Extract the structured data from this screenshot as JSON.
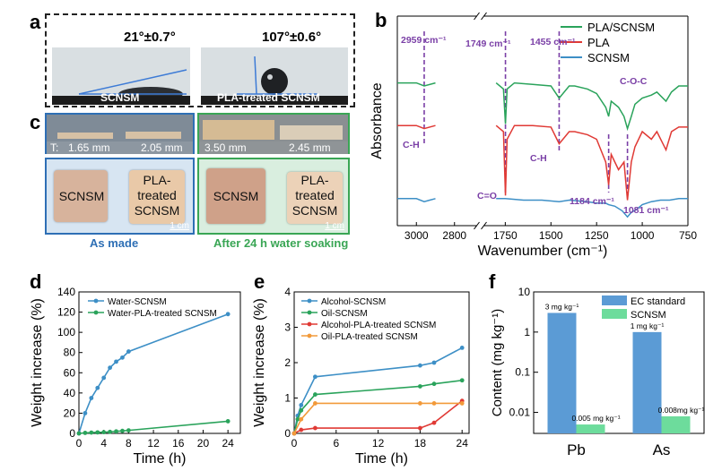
{
  "panels": {
    "a": {
      "label": "a",
      "left": {
        "angle": "21°±0.7°",
        "caption": "SCNSM"
      },
      "right": {
        "angle": "107°±0.6°",
        "caption": "PLA-treated SCNSM"
      }
    },
    "c": {
      "label": "c",
      "thickness": {
        "prefix": "T:",
        "values": [
          "1.65 mm",
          "2.05 mm",
          "3.50 mm",
          "2.45 mm"
        ]
      },
      "tiles": [
        "SCNSM",
        "PLA-treated SCNSM",
        "SCNSM",
        "PLA-treated SCNSM"
      ],
      "scalebar": "1 cm",
      "captions": {
        "left": "As made",
        "right": "After 24 h water  soaking"
      },
      "colors": {
        "left": "#2e6fb5",
        "right": "#3aa655"
      }
    },
    "b": {
      "label": "b"
    },
    "d": {
      "label": "d"
    },
    "e": {
      "label": "e"
    },
    "f": {
      "label": "f"
    }
  },
  "chart_data": [
    {
      "id": "b",
      "type": "line",
      "xlabel": "Wavenumber (cm⁻¹)",
      "ylabel": "Absorbance",
      "xticks": [
        "3000",
        "2800",
        "1750",
        "1500",
        "1250",
        "1000",
        "750"
      ],
      "legend": [
        "PLA/SCNSM",
        "PLA",
        "SCNSM"
      ],
      "colors": [
        "#2aa35b",
        "#e03a35",
        "#3d8fc6"
      ],
      "annotations": [
        "2959 cm⁻¹",
        "1749 cm⁻¹",
        "1455 cm⁻¹",
        "C-O-C",
        "C-H",
        "C-H",
        "C=O",
        "1184 cm⁻¹",
        "1081 cm⁻¹"
      ],
      "series": [
        {
          "name": "PLA/SCNSM",
          "points": [
            [
              3100,
              0.82
            ],
            [
              3000,
              0.82
            ],
            [
              2959,
              0.8
            ],
            [
              2900,
              0.82
            ],
            [
              1800,
              0.82
            ],
            [
              1760,
              0.78
            ],
            [
              1749,
              0.55
            ],
            [
              1740,
              0.78
            ],
            [
              1700,
              0.82
            ],
            [
              1600,
              0.81
            ],
            [
              1500,
              0.8
            ],
            [
              1455,
              0.72
            ],
            [
              1400,
              0.8
            ],
            [
              1370,
              0.8
            ],
            [
              1300,
              0.78
            ],
            [
              1250,
              0.75
            ],
            [
              1200,
              0.66
            ],
            [
              1184,
              0.6
            ],
            [
              1170,
              0.7
            ],
            [
              1130,
              0.66
            ],
            [
              1100,
              0.6
            ],
            [
              1081,
              0.52
            ],
            [
              1060,
              0.6
            ],
            [
              1040,
              0.68
            ],
            [
              1000,
              0.72
            ],
            [
              950,
              0.74
            ],
            [
              920,
              0.76
            ],
            [
              870,
              0.7
            ],
            [
              840,
              0.76
            ],
            [
              800,
              0.8
            ],
            [
              750,
              0.8
            ]
          ]
        },
        {
          "name": "PLA",
          "points": [
            [
              3100,
              0.54
            ],
            [
              3000,
              0.54
            ],
            [
              2959,
              0.52
            ],
            [
              2900,
              0.54
            ],
            [
              1800,
              0.54
            ],
            [
              1760,
              0.5
            ],
            [
              1749,
              0.08
            ],
            [
              1740,
              0.45
            ],
            [
              1700,
              0.54
            ],
            [
              1600,
              0.54
            ],
            [
              1500,
              0.53
            ],
            [
              1455,
              0.42
            ],
            [
              1400,
              0.5
            ],
            [
              1370,
              0.5
            ],
            [
              1300,
              0.48
            ],
            [
              1250,
              0.45
            ],
            [
              1200,
              0.3
            ],
            [
              1184,
              0.15
            ],
            [
              1170,
              0.35
            ],
            [
              1130,
              0.25
            ],
            [
              1100,
              0.3
            ],
            [
              1081,
              0.05
            ],
            [
              1060,
              0.3
            ],
            [
              1040,
              0.4
            ],
            [
              1000,
              0.5
            ],
            [
              950,
              0.45
            ],
            [
              920,
              0.5
            ],
            [
              870,
              0.38
            ],
            [
              840,
              0.5
            ],
            [
              800,
              0.53
            ],
            [
              750,
              0.53
            ]
          ]
        },
        {
          "name": "SCNSM",
          "points": [
            [
              3100,
              0.06
            ],
            [
              3000,
              0.06
            ],
            [
              2959,
              0.04
            ],
            [
              2930,
              0.05
            ],
            [
              2900,
              0.06
            ],
            [
              1800,
              0.06
            ],
            [
              1750,
              0.06
            ],
            [
              1650,
              0.05
            ],
            [
              1550,
              0.05
            ],
            [
              1455,
              0.04
            ],
            [
              1400,
              0.05
            ],
            [
              1300,
              0.04
            ],
            [
              1250,
              0.03
            ],
            [
              1200,
              0.03
            ],
            [
              1184,
              0.02
            ],
            [
              1150,
              0.01
            ],
            [
              1110,
              -0.02
            ],
            [
              1081,
              -0.06
            ],
            [
              1060,
              -0.03
            ],
            [
              1030,
              -0.01
            ],
            [
              1000,
              0.02
            ],
            [
              950,
              0.04
            ],
            [
              900,
              0.05
            ],
            [
              850,
              0.05
            ],
            [
              800,
              0.06
            ],
            [
              750,
              0.06
            ]
          ]
        }
      ]
    },
    {
      "id": "d",
      "type": "line",
      "xlabel": "Time (h)",
      "ylabel": "Weight increase (%)",
      "xlim": [
        0,
        26
      ],
      "xticks": [
        0,
        4,
        8,
        12,
        16,
        20,
        24
      ],
      "ylim": [
        0,
        140
      ],
      "yticks": [
        0,
        20,
        40,
        60,
        80,
        100,
        120,
        140
      ],
      "series": [
        {
          "name": "Water-SCNSM",
          "color": "#3d8fc6",
          "x": [
            0,
            1,
            2,
            3,
            4,
            5,
            6,
            7,
            8,
            24
          ],
          "values": [
            0,
            20,
            35,
            45,
            55,
            65,
            71,
            75,
            81,
            118
          ]
        },
        {
          "name": "Water-PLA-treated SCNSM",
          "color": "#2aa35b",
          "x": [
            0,
            1,
            2,
            3,
            4,
            5,
            6,
            7,
            8,
            24
          ],
          "values": [
            0,
            0.5,
            0.8,
            1,
            1.2,
            1.5,
            2,
            2.5,
            3,
            12
          ]
        }
      ]
    },
    {
      "id": "e",
      "type": "line",
      "xlabel": "Time (h)",
      "ylabel": "Weight increase (%)",
      "xlim": [
        0,
        25
      ],
      "xticks": [
        0,
        6,
        12,
        18,
        24
      ],
      "ylim": [
        0,
        4
      ],
      "yticks": [
        0,
        1,
        2,
        3,
        4
      ],
      "series": [
        {
          "name": "Alcohol-SCNSM",
          "color": "#3d8fc6",
          "x": [
            0,
            0.5,
            1,
            3,
            18,
            20,
            24
          ],
          "values": [
            0,
            0.5,
            0.8,
            1.6,
            1.92,
            2.0,
            2.42
          ]
        },
        {
          "name": "Oil-SCNSM",
          "color": "#2aa35b",
          "x": [
            0,
            0.5,
            1,
            3,
            18,
            20,
            24
          ],
          "values": [
            0,
            0.4,
            0.65,
            1.1,
            1.33,
            1.4,
            1.5
          ]
        },
        {
          "name": "Alcohol-PLA-treated SCNSM",
          "color": "#e03a35",
          "x": [
            0,
            1,
            3,
            18,
            20,
            24
          ],
          "values": [
            0,
            0.1,
            0.15,
            0.15,
            0.3,
            0.92
          ]
        },
        {
          "name": "Oil-PLA-treated SCNSM",
          "color": "#f29a3a",
          "x": [
            0,
            1,
            3,
            18,
            20,
            24
          ],
          "values": [
            0,
            0.4,
            0.85,
            0.85,
            0.85,
            0.85
          ]
        }
      ]
    },
    {
      "id": "f",
      "type": "bar",
      "scale": "log",
      "ylabel": "Content (mg kg⁻¹)",
      "categories": [
        "Pb",
        "As"
      ],
      "ylim": [
        0.003,
        10
      ],
      "yticks": [
        "0.01",
        "0.1",
        "1",
        "10"
      ],
      "series": [
        {
          "name": "EC standard",
          "color": "#5b9bd5",
          "values": [
            3,
            1
          ],
          "labels": [
            "3 mg kg⁻¹",
            "1 mg kg⁻¹"
          ]
        },
        {
          "name": "SCNSM",
          "color": "#6ddc9c",
          "values": [
            0.005,
            0.008
          ],
          "labels": [
            "0.005 mg kg⁻¹",
            "0.008mg kg⁻¹"
          ]
        }
      ]
    }
  ]
}
